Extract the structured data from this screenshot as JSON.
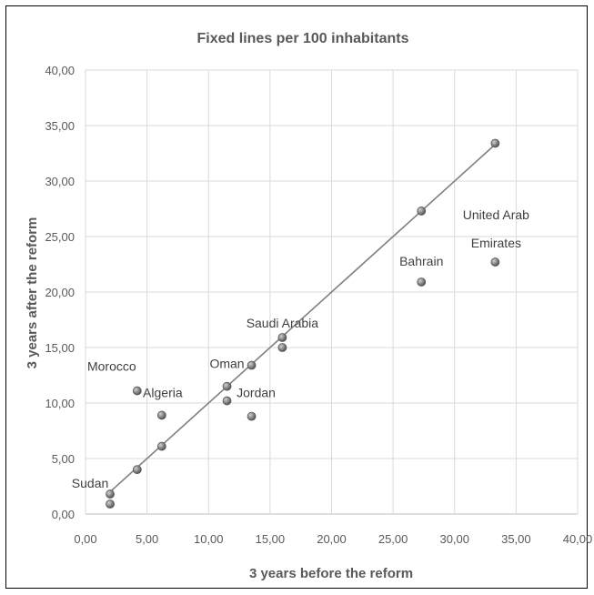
{
  "chart_data": {
    "type": "scatter",
    "title": "Fixed lines per 100 inhabitants",
    "xlabel": "3 years before the reform",
    "ylabel": "3 years after the reform",
    "xlim": [
      0,
      40
    ],
    "ylim": [
      0,
      40
    ],
    "xticks": [
      "0,00",
      "5,00",
      "10,00",
      "15,00",
      "20,00",
      "25,00",
      "30,00",
      "35,00",
      "40,00"
    ],
    "yticks": [
      "0,00",
      "5,00",
      "10,00",
      "15,00",
      "20,00",
      "25,00",
      "30,00",
      "35,00",
      "40,00"
    ],
    "grid": true,
    "point_color": "#7f7f7f",
    "trendline": {
      "from": [
        2.0,
        2.0
      ],
      "to": [
        33.3,
        33.3
      ]
    },
    "points": [
      {
        "x": 2.0,
        "y": 1.8
      },
      {
        "x": 2.0,
        "y": 0.9
      },
      {
        "x": 4.2,
        "y": 11.1
      },
      {
        "x": 4.2,
        "y": 4.0
      },
      {
        "x": 6.2,
        "y": 8.9
      },
      {
        "x": 6.2,
        "y": 6.1
      },
      {
        "x": 11.5,
        "y": 11.5
      },
      {
        "x": 11.5,
        "y": 10.2
      },
      {
        "x": 13.5,
        "y": 13.4
      },
      {
        "x": 13.5,
        "y": 8.8
      },
      {
        "x": 16.0,
        "y": 15.9
      },
      {
        "x": 16.0,
        "y": 15.0
      },
      {
        "x": 27.3,
        "y": 27.3
      },
      {
        "x": 27.3,
        "y": 20.9
      },
      {
        "x": 33.3,
        "y": 33.4
      },
      {
        "x": 33.3,
        "y": 22.7
      }
    ],
    "labels": [
      {
        "lines": [
          "Sudan"
        ],
        "x": 2.0,
        "y": 1.8
      },
      {
        "lines": [
          "Morocco"
        ],
        "x": 4.2,
        "y": 11.1
      },
      {
        "lines": [
          "Algeria"
        ],
        "x": 6.2,
        "y": 8.9
      },
      {
        "lines": [
          "Oman"
        ],
        "x": 11.5,
        "y": 11.5
      },
      {
        "lines": [
          "Jordan"
        ],
        "x": 11.5,
        "y": 10.2
      },
      {
        "lines": [
          "Saudi Arabia"
        ],
        "x": 16.0,
        "y": 15.9
      },
      {
        "lines": [
          "Bahrain"
        ],
        "x": 27.3,
        "y": 20.9
      },
      {
        "lines": [
          "United Arab",
          "Emirates"
        ],
        "x": 33.3,
        "y": 22.7
      }
    ]
  }
}
